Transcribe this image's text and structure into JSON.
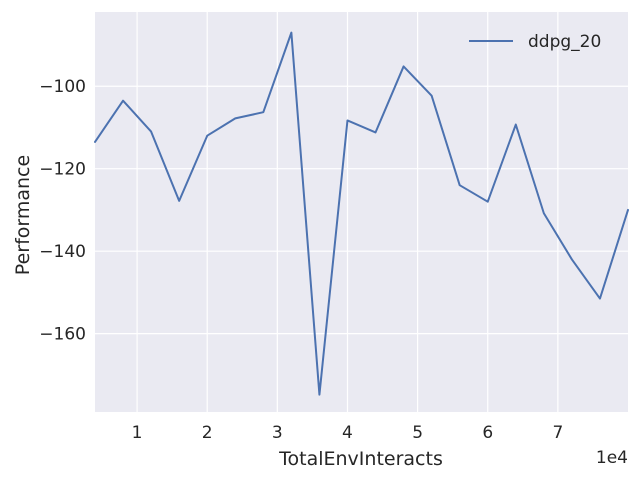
{
  "chart_data": {
    "type": "line",
    "xlabel": "TotalEnvInteracts",
    "ylabel": "Performance",
    "x_offset_label": "1e4",
    "xlim": [
      4000,
      80000
    ],
    "ylim": [
      -179,
      -82
    ],
    "x_ticks": [
      {
        "value": 10000,
        "label": "1"
      },
      {
        "value": 20000,
        "label": "2"
      },
      {
        "value": 30000,
        "label": "3"
      },
      {
        "value": 40000,
        "label": "4"
      },
      {
        "value": 50000,
        "label": "5"
      },
      {
        "value": 60000,
        "label": "6"
      },
      {
        "value": 70000,
        "label": "7"
      }
    ],
    "y_ticks": [
      {
        "value": -100,
        "label": "−100"
      },
      {
        "value": -120,
        "label": "−120"
      },
      {
        "value": -140,
        "label": "−140"
      },
      {
        "value": -160,
        "label": "−160"
      }
    ],
    "grid": true,
    "legend_position": "top-right",
    "background": "#eaeaf2",
    "grid_color": "#ffffff",
    "series": [
      {
        "name": "ddpg_20",
        "color": "#4c72b0",
        "x": [
          4000,
          8000,
          12000,
          16000,
          20000,
          24000,
          28000,
          32000,
          36000,
          40000,
          44000,
          48000,
          52000,
          56000,
          60000,
          64000,
          68000,
          72000,
          76000,
          80000
        ],
        "y": [
          -113.5,
          -103.5,
          -111.0,
          -127.8,
          -112.0,
          -107.8,
          -106.3,
          -87.0,
          -174.8,
          -108.3,
          -111.2,
          -95.2,
          -102.3,
          -124.0,
          -128.0,
          -109.3,
          -130.8,
          -142.0,
          -151.5,
          -130.0
        ]
      }
    ]
  }
}
